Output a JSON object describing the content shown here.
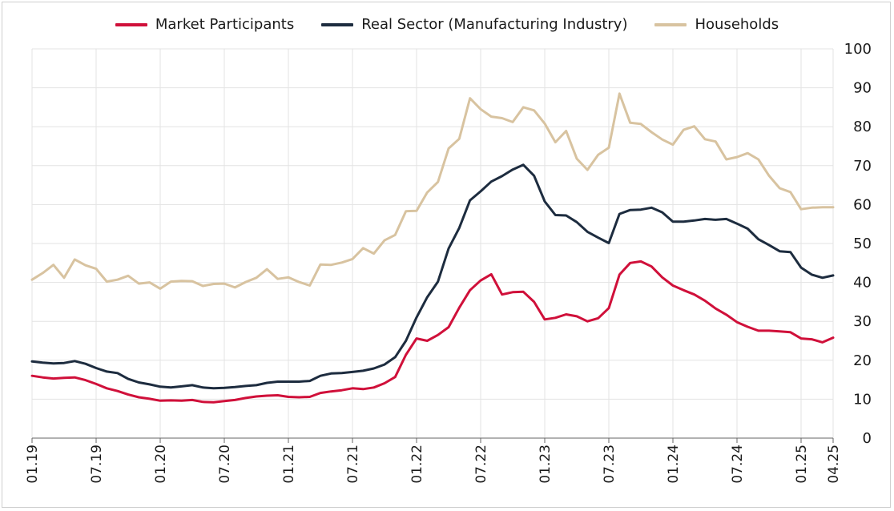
{
  "colors": {
    "market": "#d0103a",
    "real": "#1d2c3f",
    "households": "#d8c3a0",
    "grid": "#e3e3e3",
    "axis": "#666666"
  },
  "chart_data": {
    "type": "line",
    "title": "",
    "xlabel": "",
    "ylabel": "",
    "ylim": [
      0,
      100
    ],
    "y_ticks": [
      0,
      10,
      20,
      30,
      40,
      50,
      60,
      70,
      80,
      90,
      100
    ],
    "x_tick_labels": [
      "01.19",
      "07.19",
      "01.20",
      "07.20",
      "01.21",
      "07.21",
      "01.22",
      "07.22",
      "01.23",
      "07.23",
      "01.24",
      "07.24",
      "01.25",
      "04.25"
    ],
    "x_tick_months": [
      0,
      6,
      12,
      18,
      24,
      30,
      36,
      42,
      48,
      54,
      60,
      66,
      72,
      75
    ],
    "x_start": "01.19",
    "x_end": "04.25",
    "series": [
      {
        "name": "Market Participants",
        "values": [
          16,
          15.6,
          15.3,
          15.5,
          15.6,
          14.9,
          13.9,
          12.8,
          12.1,
          11.2,
          10.5,
          10.1,
          9.6,
          9.7,
          9.6,
          9.8,
          9.3,
          9.2,
          9.5,
          9.8,
          10.3,
          10.7,
          10.9,
          11,
          10.6,
          10.5,
          10.6,
          11.6,
          12,
          12.3,
          12.8,
          12.6,
          13,
          14.1,
          15.7,
          21.4,
          25.6,
          25,
          26.5,
          28.5,
          33.5,
          38,
          40.5,
          42.1,
          36.9,
          37.5,
          37.6,
          35,
          30.5,
          30.9,
          31.8,
          31.3,
          30,
          30.8,
          33.4,
          42,
          45,
          45.4,
          44.1,
          41.3,
          39.2,
          38,
          36.9,
          35.3,
          33.3,
          31.7,
          29.8,
          28.6,
          27.6,
          27.6,
          27.4,
          27.2,
          25.6,
          25.4,
          24.6,
          25.8
        ]
      },
      {
        "name": "Real Sector (Manufacturing Industry)",
        "values": [
          19.7,
          19.4,
          19.2,
          19.3,
          19.8,
          19.1,
          18,
          17.1,
          16.7,
          15.2,
          14.3,
          13.8,
          13.2,
          13,
          13.3,
          13.6,
          13,
          12.8,
          12.9,
          13.1,
          13.4,
          13.6,
          14.2,
          14.5,
          14.5,
          14.5,
          14.7,
          16,
          16.6,
          16.7,
          17,
          17.3,
          17.9,
          18.9,
          20.8,
          25,
          31,
          36.2,
          40.2,
          48.7,
          54,
          61.1,
          63.4,
          65.9,
          67.3,
          69,
          70.2,
          67.4,
          60.8,
          57.3,
          57.2,
          55.5,
          53,
          51.5,
          50.1,
          57.6,
          58.6,
          58.7,
          59.2,
          58,
          55.6,
          55.6,
          55.9,
          56.3,
          56.1,
          56.3,
          55.1,
          53.8,
          51.1,
          49.6,
          48,
          47.8,
          43.8,
          42,
          41.2,
          41.8
        ]
      },
      {
        "name": "Households",
        "values": [
          40.7,
          42.4,
          44.5,
          41.2,
          45.9,
          44.4,
          43.5,
          40.2,
          40.7,
          41.7,
          39.7,
          40,
          38.4,
          40.2,
          40.4,
          40.3,
          39.1,
          39.6,
          39.7,
          38.7,
          40.1,
          41.2,
          43.4,
          40.9,
          41.3,
          40.1,
          39.2,
          44.6,
          44.5,
          45.1,
          46,
          48.8,
          47.4,
          50.8,
          52.2,
          58.3,
          58.4,
          63.1,
          65.8,
          74.4,
          76.9,
          87.3,
          84.5,
          82.6,
          82.2,
          81.2,
          85,
          84.2,
          80.8,
          76,
          78.9,
          71.8,
          68.9,
          72.8,
          74.6,
          88.5,
          81,
          80.7,
          78.6,
          76.7,
          75.4,
          79.2,
          80.1,
          76.8,
          76.2,
          71.6,
          72.2,
          73.2,
          71.6,
          67.4,
          64.2,
          63.2,
          58.8,
          59.2,
          59.3,
          59.3
        ]
      }
    ]
  }
}
